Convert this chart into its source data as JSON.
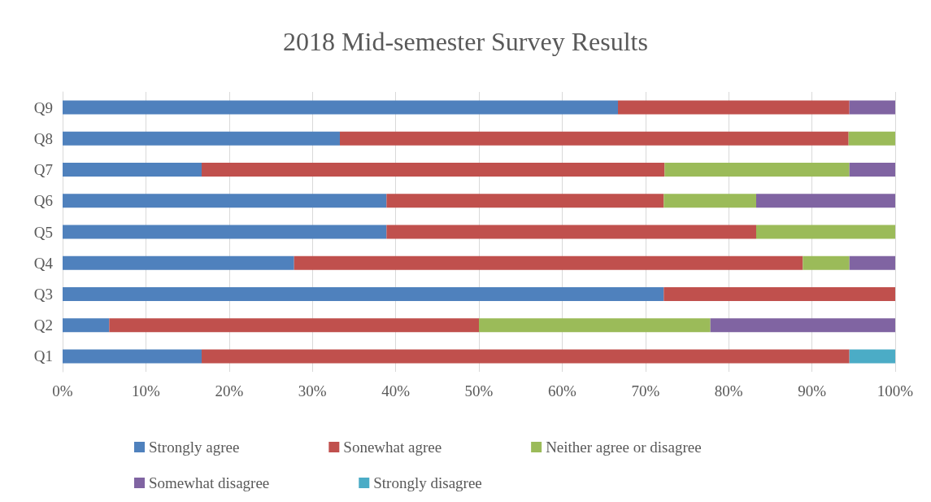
{
  "chart_data": {
    "type": "bar",
    "orientation": "horizontal",
    "stacked": true,
    "title": "2018 Mid-semester Survey Results",
    "categories": [
      "Q9",
      "Q8",
      "Q7",
      "Q6",
      "Q5",
      "Q4",
      "Q3",
      "Q2",
      "Q1"
    ],
    "series": [
      {
        "name": "Strongly agree",
        "color": "#4f81bd",
        "values": [
          66.7,
          33.3,
          16.7,
          38.9,
          38.9,
          27.8,
          72.2,
          5.6,
          16.7
        ]
      },
      {
        "name": "Sonewhat agree",
        "color": "#c0504d",
        "values": [
          27.8,
          61.1,
          55.6,
          33.3,
          44.4,
          61.1,
          27.8,
          44.4,
          77.8
        ]
      },
      {
        "name": "Neither agree or disagree",
        "color": "#9bbb59",
        "values": [
          0,
          5.6,
          22.2,
          11.1,
          16.7,
          5.6,
          0,
          27.8,
          0
        ]
      },
      {
        "name": "Somewhat disagree",
        "color": "#8064a2",
        "values": [
          5.6,
          0,
          5.6,
          16.7,
          0,
          5.6,
          0,
          22.2,
          0
        ]
      },
      {
        "name": "Strongly disagree",
        "color": "#4bacc6",
        "values": [
          0,
          0,
          0,
          0,
          0,
          0,
          0,
          0,
          5.6
        ]
      }
    ],
    "xlim": [
      0,
      100
    ],
    "xticks": [
      {
        "value": 0,
        "label": "0%"
      },
      {
        "value": 10,
        "label": "10%"
      },
      {
        "value": 20,
        "label": "20%"
      },
      {
        "value": 30,
        "label": "30%"
      },
      {
        "value": 40,
        "label": "40%"
      },
      {
        "value": 50,
        "label": "50%"
      },
      {
        "value": 60,
        "label": "60%"
      },
      {
        "value": 70,
        "label": "70%"
      },
      {
        "value": 80,
        "label": "80%"
      },
      {
        "value": 90,
        "label": "90%"
      },
      {
        "value": 100,
        "label": "100%"
      }
    ],
    "grid": "x",
    "legend": "bottom"
  }
}
